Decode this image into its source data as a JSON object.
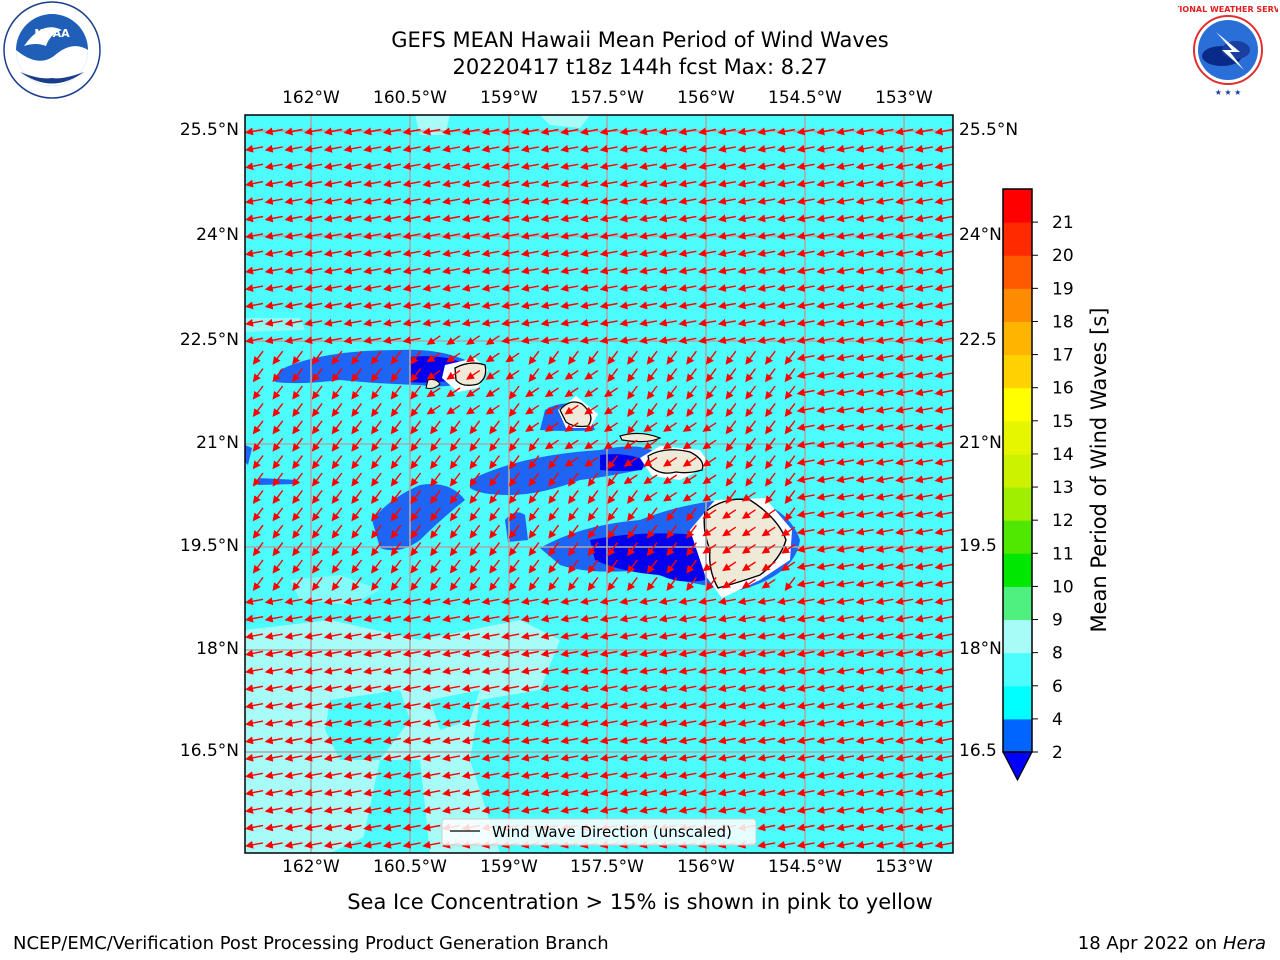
{
  "header": {
    "title_line1": "GEFS MEAN Hawaii Mean Period of Wind Waves",
    "title_line2": "20220417 t18z 144h fcst   Max: 8.27"
  },
  "logos": {
    "left": {
      "name": "NOAA",
      "ring_text": "NATIONAL OCEANIC AND ATMOSPHERIC ADMINISTRATION",
      "bottom_text": "U.S. DEPARTMENT OF COMMERCE"
    },
    "right": {
      "ring_text": "NATIONAL WEATHER SERVICE"
    }
  },
  "map": {
    "lon_labels": [
      "162°W",
      "160.5°W",
      "159°W",
      "157.5°W",
      "156°W",
      "154.5°W",
      "153°W"
    ],
    "lat_labels_left": [
      "25.5°N",
      "24°N",
      "22.5°N",
      "21°N",
      "19.5°N",
      "18°N",
      "16.5°N"
    ],
    "lat_labels_right": [
      "25.5°N",
      "24°N",
      "22.5",
      "21°N",
      "19.5",
      "18°N",
      "16.5"
    ],
    "legend_label": "Wind Wave Direction (unscaled)",
    "colors": {
      "ocean": "#4dfcfc",
      "light": "#a8fcf8",
      "band_2_4": "#1e64f5",
      "band_lt2": "#0000f0",
      "land": "#efe9d8",
      "arrow": "#ff0000",
      "grid": "#aaaaaa"
    }
  },
  "colorbar": {
    "label": "Mean Period of Wind Waves [s]",
    "ticks": [
      "2",
      "4",
      "6",
      "8",
      "9",
      "10",
      "11",
      "12",
      "13",
      "14",
      "15",
      "16",
      "17",
      "18",
      "19",
      "20",
      "21"
    ],
    "colors": [
      "#0064ff",
      "#00ffff",
      "#4dfcfc",
      "#a8fcf8",
      "#50f080",
      "#00e800",
      "#50e800",
      "#a0ee00",
      "#ccf200",
      "#e6f500",
      "#ffff00",
      "#ffd200",
      "#ffb400",
      "#ff8c00",
      "#ff5a00",
      "#ff2a00",
      "#ff0000"
    ],
    "under_color": "#0000ff"
  },
  "footer": {
    "note": "Sea Ice Concentration > 15% is shown in pink to yellow",
    "credit": "NCEP/EMC/Verification Post Processing Product Generation Branch",
    "date": "18 Apr 2022 on ",
    "machine": "Hera"
  }
}
